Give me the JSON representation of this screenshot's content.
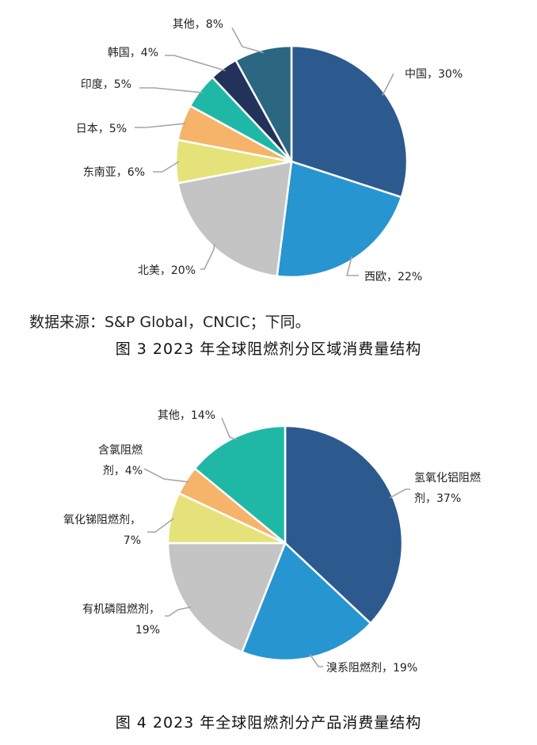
{
  "chart_data": [
    {
      "type": "pie",
      "slices": [
        {
          "label": "中国",
          "value": 30,
          "display": "中国，30%",
          "color": "#2d5a8e"
        },
        {
          "label": "西欧",
          "value": 22,
          "display": "西欧，22%",
          "color": "#2795d0"
        },
        {
          "label": "北美",
          "value": 20,
          "display": "北美，20%",
          "color": "#c4c4c4"
        },
        {
          "label": "东南亚",
          "value": 6,
          "display": "东南亚，6%",
          "color": "#e6e27a"
        },
        {
          "label": "日本",
          "value": 5,
          "display": "日本，5%",
          "color": "#f5b46a"
        },
        {
          "label": "印度",
          "value": 5,
          "display": "印度，5%",
          "color": "#1fb8a7"
        },
        {
          "label": "韩国",
          "value": 4,
          "display": "韩国，4%",
          "color": "#22325a"
        },
        {
          "label": "其他",
          "value": 8,
          "display": "其他，8%",
          "color": "#2b6781"
        }
      ]
    },
    {
      "type": "pie",
      "slices": [
        {
          "label": "氢氧化铝阻燃剂",
          "value": 37,
          "display": [
            "氢氧化铝阻燃",
            "剂，37%"
          ],
          "color": "#2d5a8e"
        },
        {
          "label": "溴系阻燃剂",
          "value": 19,
          "display": [
            "溴系阻燃剂，19%"
          ],
          "color": "#2795d0"
        },
        {
          "label": "有机磷阻燃剂",
          "value": 19,
          "display": [
            "有机磷阻燃剂，",
            "19%"
          ],
          "color": "#c4c4c4"
        },
        {
          "label": "氧化锑阻燃剂",
          "value": 7,
          "display": [
            "氧化锑阻燃剂，",
            "7%"
          ],
          "color": "#e6e27a"
        },
        {
          "label": "含氯阻燃剂",
          "value": 4,
          "display": [
            "含氯阻燃",
            "剂，4%"
          ],
          "color": "#f5b46a"
        },
        {
          "label": "其他",
          "value": 14,
          "display": [
            "其他，14%"
          ],
          "color": "#1fb8a7"
        }
      ]
    }
  ],
  "source_note": "数据来源：S&P Global，CNCIC；下同。",
  "caption1": "图 3  2023 年全球阻燃剂分区域消费量结构",
  "caption2": "图 4  2023 年全球阻燃剂分产品消费量结构"
}
